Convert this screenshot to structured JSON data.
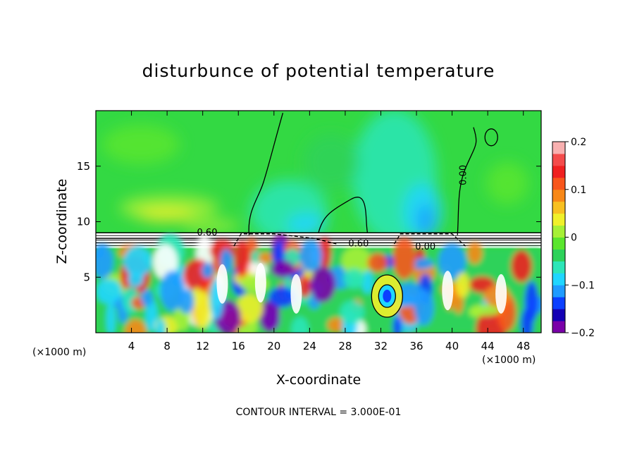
{
  "chart_data": {
    "type": "heatmap",
    "title": "disturbunce of potential temperature",
    "xlabel": "X-coordinate",
    "ylabel": "Z-coordinate",
    "x_unit_label_left": "(×1000 m)",
    "x_unit_label_right": "(×1000 m)",
    "xlim": [
      0,
      50
    ],
    "ylim": [
      0,
      20
    ],
    "x_ticks": [
      4,
      8,
      12,
      16,
      20,
      24,
      28,
      32,
      36,
      40,
      44,
      48
    ],
    "x_tick_labels": [
      "4",
      "8",
      "12",
      "16",
      "20",
      "24",
      "28",
      "32",
      "36",
      "40",
      "44",
      "48"
    ],
    "y_ticks": [
      5,
      10,
      15
    ],
    "y_tick_labels": [
      "5",
      "10",
      "15"
    ],
    "colorbar": {
      "range": [
        -0.2,
        0.2
      ],
      "tick_values": [
        0.2,
        0.1,
        0,
        -0.1,
        -0.2
      ],
      "tick_labels": [
        "0.2",
        "0.1",
        "0",
        "−0.1",
        "−0.2"
      ],
      "colors": [
        "#7a00a8",
        "#1400b4",
        "#0b3fff",
        "#1f9bff",
        "#1fd6ff",
        "#2ce6b8",
        "#2dd25a",
        "#5ae62e",
        "#a6f036",
        "#f0f02a",
        "#f8c020",
        "#f88818",
        "#f8561c",
        "#f02020",
        "#f44b4b",
        "#f8b0b0"
      ]
    },
    "contour_labels": [
      {
        "text": "0.60",
        "x": 12.5,
        "z": 9.0
      },
      {
        "text": "0.60",
        "x": 29.5,
        "z": 8.0
      },
      {
        "text": "0.00",
        "x": 37.0,
        "z": 7.7
      },
      {
        "text": "0.00",
        "x": 41.3,
        "z": 14.2
      }
    ],
    "footer_note": "CONTOUR INTERVAL = 3.000E-01",
    "grid": false
  }
}
